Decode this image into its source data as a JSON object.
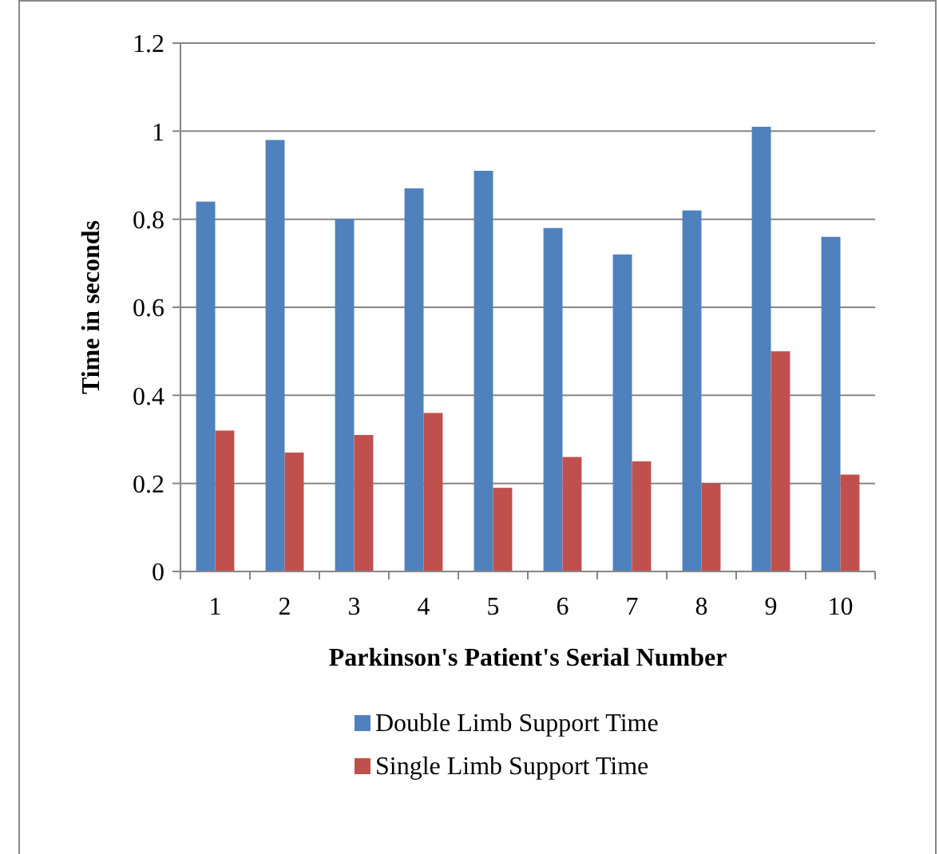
{
  "chart_data": {
    "type": "bar",
    "xlabel": "Parkinson's Patient's Serial Number",
    "ylabel": "Time in seconds",
    "categories": [
      "1",
      "2",
      "3",
      "4",
      "5",
      "6",
      "7",
      "8",
      "9",
      "10"
    ],
    "series": [
      {
        "name": "Double Limb Support Time",
        "color": "#4f81bd",
        "values": [
          0.84,
          0.98,
          0.8,
          0.87,
          0.91,
          0.78,
          0.72,
          0.82,
          1.01,
          0.76
        ]
      },
      {
        "name": "Single Limb Support Time",
        "color": "#c0504d",
        "values": [
          0.32,
          0.27,
          0.31,
          0.36,
          0.19,
          0.26,
          0.25,
          0.2,
          0.5,
          0.22
        ]
      }
    ],
    "ylim": [
      0,
      1.2
    ],
    "yticks": [
      0,
      {
        "value": 0.2,
        "label": "0.2"
      },
      {
        "value": 0.4,
        "label": "0.4"
      },
      {
        "value": 0.6,
        "label": "0.6"
      },
      {
        "value": 0.8,
        "label": "0.8"
      },
      1,
      {
        "value": 1.2,
        "label": "1.2"
      }
    ],
    "grid": "y",
    "legend": "bottom"
  }
}
